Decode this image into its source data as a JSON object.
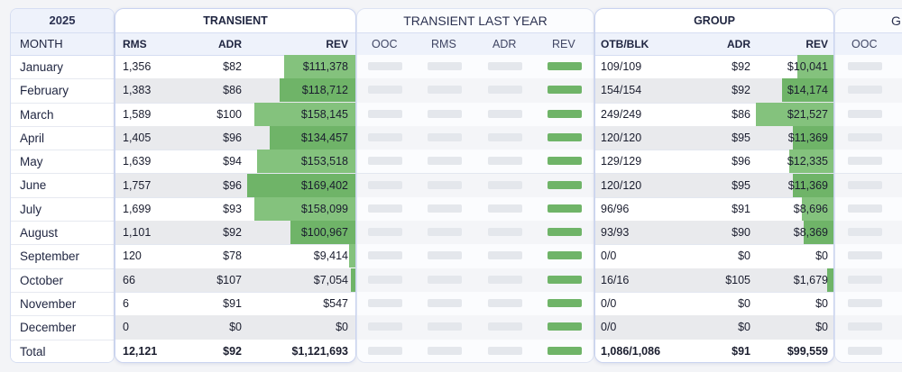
{
  "year": "2025",
  "month_header": "MONTH",
  "months": [
    "January",
    "February",
    "March",
    "April",
    "May",
    "June",
    "July",
    "August",
    "September",
    "October",
    "November",
    "December",
    "Total"
  ],
  "transient": {
    "title": "TRANSIENT",
    "headers": [
      "RMS",
      "ADR",
      "REV"
    ],
    "rows": [
      {
        "rms": "1,356",
        "adr": "$82",
        "rev": "$111,378",
        "bar": 0.659
      },
      {
        "rms": "1,383",
        "adr": "$86",
        "rev": "$118,712",
        "bar": 0.701
      },
      {
        "rms": "1,589",
        "adr": "$100",
        "rev": "$158,145",
        "bar": 0.934
      },
      {
        "rms": "1,405",
        "adr": "$96",
        "rev": "$134,457",
        "bar": 0.794
      },
      {
        "rms": "1,639",
        "adr": "$94",
        "rev": "$153,518",
        "bar": 0.906
      },
      {
        "rms": "1,757",
        "adr": "$96",
        "rev": "$169,402",
        "bar": 1.0
      },
      {
        "rms": "1,699",
        "adr": "$93",
        "rev": "$158,099",
        "bar": 0.933
      },
      {
        "rms": "1,101",
        "adr": "$92",
        "rev": "$100,967",
        "bar": 0.596
      },
      {
        "rms": "120",
        "adr": "$78",
        "rev": "$9,414",
        "bar": 0.056
      },
      {
        "rms": "66",
        "adr": "$107",
        "rev": "$7,054",
        "bar": 0.042
      },
      {
        "rms": "6",
        "adr": "$91",
        "rev": "$547",
        "bar": 0
      },
      {
        "rms": "0",
        "adr": "$0",
        "rev": "$0",
        "bar": 0
      }
    ],
    "total": {
      "rms": "12,121",
      "adr": "$92",
      "rev": "$1,121,693"
    }
  },
  "transient_last_year": {
    "title": "TRANSIENT LAST YEAR",
    "headers": [
      "OOC",
      "RMS",
      "ADR",
      "REV"
    ]
  },
  "group": {
    "title": "GROUP",
    "headers": [
      "OTB/BLK",
      "ADR",
      "REV"
    ],
    "rows": [
      {
        "otb": "109/109",
        "adr": "$92",
        "rev": "$10,041",
        "bar": 0.466
      },
      {
        "otb": "154/154",
        "adr": "$92",
        "rev": "$14,174",
        "bar": 0.658
      },
      {
        "otb": "249/249",
        "adr": "$86",
        "rev": "$21,527",
        "bar": 1.0
      },
      {
        "otb": "120/120",
        "adr": "$95",
        "rev": "$11,369",
        "bar": 0.528
      },
      {
        "otb": "129/129",
        "adr": "$96",
        "rev": "$12,335",
        "bar": 0.573
      },
      {
        "otb": "120/120",
        "adr": "$95",
        "rev": "$11,369",
        "bar": 0.528
      },
      {
        "otb": "96/96",
        "adr": "$91",
        "rev": "$8,696",
        "bar": 0.404
      },
      {
        "otb": "93/93",
        "adr": "$90",
        "rev": "$8,369",
        "bar": 0.389
      },
      {
        "otb": "0/0",
        "adr": "$0",
        "rev": "$0",
        "bar": 0
      },
      {
        "otb": "16/16",
        "adr": "$105",
        "rev": "$1,679",
        "bar": 0.078
      },
      {
        "otb": "0/0",
        "adr": "$0",
        "rev": "$0",
        "bar": 0
      },
      {
        "otb": "0/0",
        "adr": "$0",
        "rev": "$0",
        "bar": 0
      }
    ],
    "total": {
      "otb": "1,086/1,086",
      "adr": "$91",
      "rev": "$99,559"
    }
  },
  "group_last_year": {
    "title_partial": "G",
    "headers": [
      "OOC"
    ]
  },
  "colors": {
    "bar": "#84c27d",
    "bar_strong": "#6fb468",
    "header_bg": "#eef2fb",
    "alt_row": "#e9eaed"
  }
}
